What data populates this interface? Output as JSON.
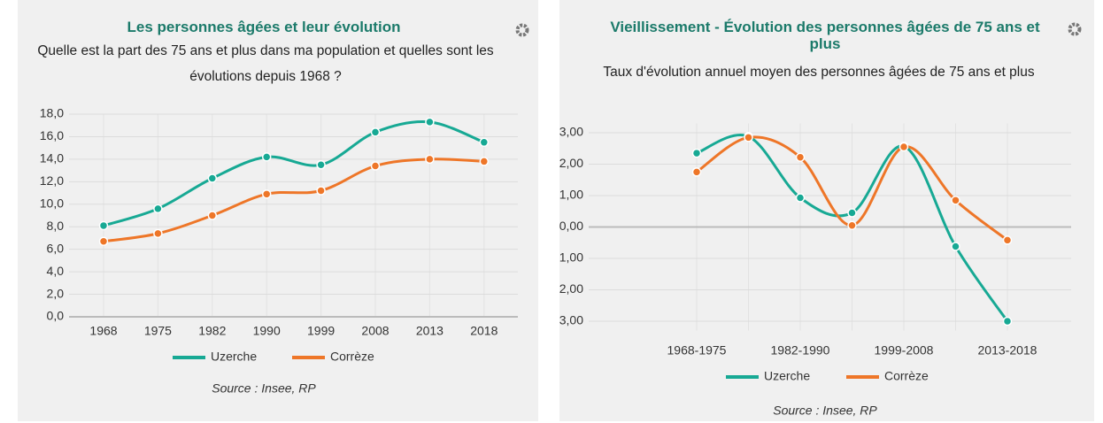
{
  "chart_data": [
    {
      "type": "line",
      "title": "Les personnes âgées et leur évolution",
      "subtitle": "Quelle est la part des 75 ans et plus dans ma population et quelles sont les évolutions depuis 1968 ?",
      "categories": [
        "1968",
        "1975",
        "1982",
        "1990",
        "1999",
        "2008",
        "2013",
        "2018"
      ],
      "series": [
        {
          "name": "Uzerche",
          "color": "#17a994",
          "values": [
            8.1,
            9.6,
            12.3,
            14.2,
            13.5,
            16.4,
            17.3,
            15.5
          ]
        },
        {
          "name": "Corrèze",
          "color": "#ee7628",
          "values": [
            6.7,
            7.4,
            9.0,
            10.9,
            11.2,
            13.4,
            14.0,
            13.8
          ]
        }
      ],
      "ylim": [
        0,
        18
      ],
      "yticks": [
        {
          "value": 0,
          "label": "0,0"
        },
        {
          "value": 2,
          "label": "2,0"
        },
        {
          "value": 4,
          "label": "4,0"
        },
        {
          "value": 6,
          "label": "6,0"
        },
        {
          "value": 8,
          "label": "8,0"
        },
        {
          "value": 10,
          "label": "10,0"
        },
        {
          "value": 12,
          "label": "12,0"
        },
        {
          "value": 14,
          "label": "14,0"
        },
        {
          "value": 16,
          "label": "16,0"
        },
        {
          "value": 18,
          "label": "18,0"
        }
      ],
      "grid": true,
      "source": "Source : Insee, RP"
    },
    {
      "type": "line",
      "title": "Vieillissement - Évolution des personnes âgées de 75 ans et plus",
      "subtitle": "Taux d'évolution annuel moyen des personnes âgées de 75 ans et plus",
      "categories": [
        "1968-1975",
        null,
        "1982-1990",
        null,
        "1999-2008",
        null,
        "2013-2018"
      ],
      "series": [
        {
          "name": "Uzerche",
          "color": "#17a994",
          "values": [
            2.35,
            2.88,
            0.93,
            0.45,
            2.57,
            -0.62,
            -3.0
          ]
        },
        {
          "name": "Corrèze",
          "color": "#ee7628",
          "values": [
            1.75,
            2.85,
            2.22,
            0.05,
            2.55,
            0.85,
            -0.42
          ]
        }
      ],
      "ylim": [
        -3.3,
        3.3
      ],
      "yticks": [
        {
          "value": -3,
          "label": "- 3,00"
        },
        {
          "value": -2,
          "label": "- 2,00"
        },
        {
          "value": -1,
          "label": "- 1,00"
        },
        {
          "value": 0,
          "label": "0,00"
        },
        {
          "value": 1,
          "label": "1,00"
        },
        {
          "value": 2,
          "label": "2,00"
        },
        {
          "value": 3,
          "label": "3,00"
        }
      ],
      "grid": true,
      "source": "Source : Insee, RP"
    }
  ]
}
